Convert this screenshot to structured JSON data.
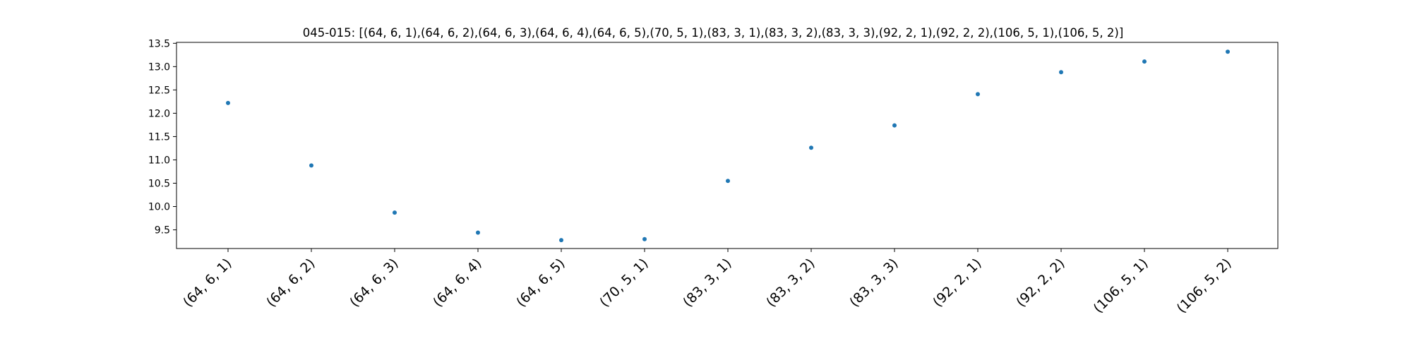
{
  "chart_data": {
    "type": "scatter",
    "title": "045-015: [(64, 6, 1),(64, 6, 2),(64, 6, 3),(64, 6, 4),(64, 6, 5),(70, 5, 1),(83, 3, 1),(83, 3, 2),(83, 3, 3),(92, 2, 1),(92, 2, 2),(106, 5, 1),(106, 5, 2)]",
    "xlabel": "",
    "ylabel": "",
    "categories": [
      "(64, 6, 1)",
      "(64, 6, 2)",
      "(64, 6, 3)",
      "(64, 6, 4)",
      "(64, 6, 5)",
      "(70, 5, 1)",
      "(83, 3, 1)",
      "(83, 3, 2)",
      "(83, 3, 3)",
      "(92, 2, 1)",
      "(92, 2, 2)",
      "(106, 5, 1)",
      "(106, 5, 2)"
    ],
    "values": [
      12.22,
      10.88,
      9.87,
      9.44,
      9.28,
      9.3,
      10.55,
      11.26,
      11.74,
      12.41,
      12.88,
      13.11,
      13.32
    ],
    "ylim": [
      9.1,
      13.52
    ],
    "yticks": [
      9.5,
      10.0,
      10.5,
      11.0,
      11.5,
      12.0,
      12.5,
      13.0,
      13.5
    ],
    "ytick_labels": [
      "9.5",
      "10.0",
      "10.5",
      "11.0",
      "11.5",
      "12.0",
      "12.5",
      "13.0",
      "13.5"
    ],
    "grid": false,
    "marker_color": "#1f77b4"
  }
}
